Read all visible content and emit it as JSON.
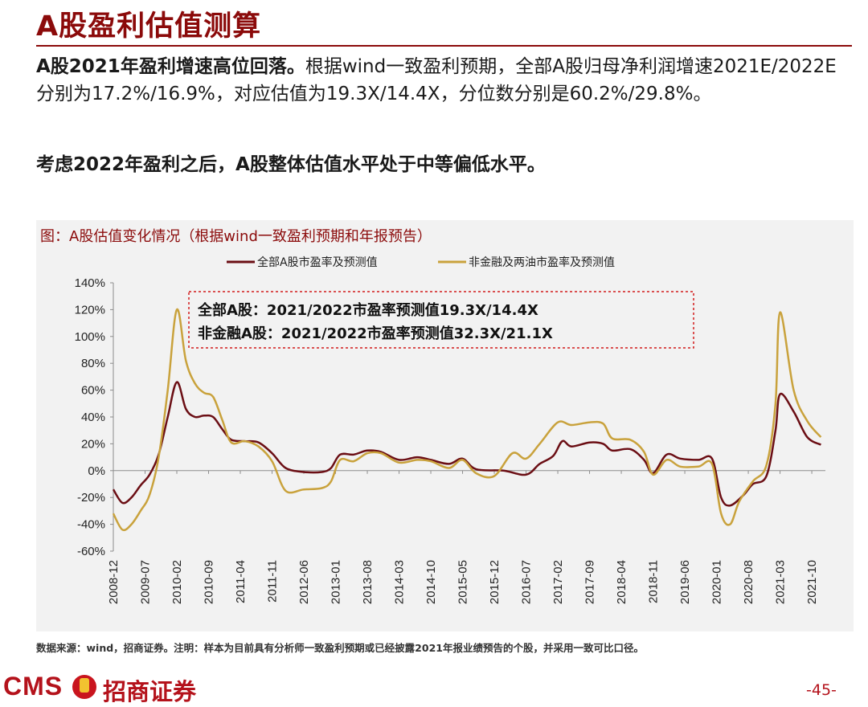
{
  "page": {
    "title": "A股盈利估值测算",
    "para1_bold": "A股2021年盈利增速高位回落。",
    "para1_rest": "根据wind一致盈利预期，全部A股归母净利润增速2021E/2022E分别为17.2%/16.9%，对应估值为19.3X/14.4X，分位数分别是60.2%/29.8%。",
    "para2": "考虑2022年盈利之后，A股整体估值水平处于中等偏低水平。",
    "source_note": "数据来源：wind，招商证券。注明：样本为目前具有分析师一致盈利预期或已经披露2021年报业绩预告的个股，并采用一致可比口径。",
    "footer_cms": "CMS",
    "footer_brand": "招商证券",
    "page_number": "-45-"
  },
  "chart_data": {
    "type": "line",
    "caption": "图：A股估值变化情况（根据wind一致盈利预期和年报预告）",
    "title": "",
    "xlabel": "",
    "ylabel": "",
    "ylim": [
      -60,
      140
    ],
    "y_ticks": [
      "140%",
      "120%",
      "100%",
      "80%",
      "60%",
      "40%",
      "20%",
      "0%",
      "-20%",
      "-40%",
      "-60%"
    ],
    "x_ticks": [
      "2008-12",
      "2009-07",
      "2010-02",
      "2010-09",
      "2011-04",
      "2011-11",
      "2012-06",
      "2013-01",
      "2013-08",
      "2014-03",
      "2014-10",
      "2015-05",
      "2015-12",
      "2016-07",
      "2017-02",
      "2017-09",
      "2018-04",
      "2018-11",
      "2019-06",
      "2020-01",
      "2020-08",
      "2021-03",
      "2021-10"
    ],
    "x_range": [
      "2008-12",
      "2022-01"
    ],
    "legend_position": "top-center",
    "grid": false,
    "annotations": [
      "全部A股：2021/2022市盈率预测值19.3X/14.4X",
      "非金融A股：2021/2022市盈率预测值32.3X/21.1X"
    ],
    "series": [
      {
        "name": "全部A股市盈率及预测值",
        "color": "#6b0e14",
        "points": [
          [
            "2008-12",
            -14
          ],
          [
            "2009-02",
            -24
          ],
          [
            "2009-04",
            -20
          ],
          [
            "2009-06",
            -11
          ],
          [
            "2009-08",
            -3
          ],
          [
            "2009-10",
            12
          ],
          [
            "2009-12",
            40
          ],
          [
            "2010-02",
            66
          ],
          [
            "2010-04",
            46
          ],
          [
            "2010-06",
            40
          ],
          [
            "2010-08",
            41
          ],
          [
            "2010-10",
            40
          ],
          [
            "2010-12",
            31
          ],
          [
            "2011-02",
            23
          ],
          [
            "2011-05",
            22
          ],
          [
            "2011-08",
            21
          ],
          [
            "2011-11",
            13
          ],
          [
            "2012-02",
            2
          ],
          [
            "2012-06",
            -1
          ],
          [
            "2012-10",
            -1
          ],
          [
            "2012-12",
            2
          ],
          [
            "2013-02",
            12
          ],
          [
            "2013-05",
            12
          ],
          [
            "2013-08",
            15
          ],
          [
            "2013-11",
            14
          ],
          [
            "2014-03",
            8
          ],
          [
            "2014-07",
            10
          ],
          [
            "2014-10",
            8
          ],
          [
            "2015-02",
            5
          ],
          [
            "2015-05",
            9
          ],
          [
            "2015-08",
            1
          ],
          [
            "2016-02",
            0
          ],
          [
            "2016-07",
            -3
          ],
          [
            "2016-10",
            5
          ],
          [
            "2017-01",
            11
          ],
          [
            "2017-03",
            22
          ],
          [
            "2017-05",
            18
          ],
          [
            "2017-09",
            21
          ],
          [
            "2017-12",
            20
          ],
          [
            "2018-02",
            15
          ],
          [
            "2018-06",
            16
          ],
          [
            "2018-09",
            8
          ],
          [
            "2018-11",
            -2
          ],
          [
            "2019-02",
            12
          ],
          [
            "2019-05",
            9
          ],
          [
            "2019-09",
            8
          ],
          [
            "2019-12",
            9
          ],
          [
            "2020-02",
            -20
          ],
          [
            "2020-04",
            -26
          ],
          [
            "2020-07",
            -18
          ],
          [
            "2020-09",
            -10
          ],
          [
            "2020-12",
            -4
          ],
          [
            "2021-02",
            30
          ],
          [
            "2021-03",
            57
          ],
          [
            "2021-06",
            44
          ],
          [
            "2021-09",
            25
          ],
          [
            "2021-12",
            19.3
          ]
        ]
      },
      {
        "name": "非金融及两油市盈率及预测值",
        "color": "#c9a23c",
        "points": [
          [
            "2008-12",
            -32
          ],
          [
            "2009-02",
            -44
          ],
          [
            "2009-04",
            -40
          ],
          [
            "2009-06",
            -30
          ],
          [
            "2009-08",
            -18
          ],
          [
            "2009-10",
            10
          ],
          [
            "2009-12",
            60
          ],
          [
            "2010-02",
            120
          ],
          [
            "2010-04",
            82
          ],
          [
            "2010-06",
            65
          ],
          [
            "2010-08",
            58
          ],
          [
            "2010-10",
            55
          ],
          [
            "2010-12",
            38
          ],
          [
            "2011-02",
            21
          ],
          [
            "2011-05",
            22
          ],
          [
            "2011-08",
            18
          ],
          [
            "2011-11",
            7
          ],
          [
            "2012-02",
            -15
          ],
          [
            "2012-06",
            -14
          ],
          [
            "2012-10",
            -13
          ],
          [
            "2012-12",
            -8
          ],
          [
            "2013-02",
            8
          ],
          [
            "2013-05",
            7
          ],
          [
            "2013-08",
            13
          ],
          [
            "2013-11",
            13
          ],
          [
            "2014-03",
            6
          ],
          [
            "2014-07",
            8
          ],
          [
            "2014-10",
            7
          ],
          [
            "2015-02",
            2
          ],
          [
            "2015-05",
            8
          ],
          [
            "2015-08",
            -2
          ],
          [
            "2015-12",
            -4
          ],
          [
            "2016-04",
            13
          ],
          [
            "2016-07",
            9
          ],
          [
            "2016-10",
            20
          ],
          [
            "2017-02",
            36
          ],
          [
            "2017-05",
            34
          ],
          [
            "2017-09",
            36
          ],
          [
            "2017-12",
            35
          ],
          [
            "2018-02",
            24
          ],
          [
            "2018-06",
            23
          ],
          [
            "2018-09",
            14
          ],
          [
            "2018-11",
            -3
          ],
          [
            "2019-02",
            8
          ],
          [
            "2019-05",
            3
          ],
          [
            "2019-09",
            3
          ],
          [
            "2019-12",
            5
          ],
          [
            "2020-02",
            -32
          ],
          [
            "2020-04",
            -40
          ],
          [
            "2020-06",
            -23
          ],
          [
            "2020-09",
            -8
          ],
          [
            "2020-12",
            4
          ],
          [
            "2021-02",
            50
          ],
          [
            "2021-03",
            118
          ],
          [
            "2021-06",
            60
          ],
          [
            "2021-09",
            37
          ],
          [
            "2021-12",
            25
          ]
        ]
      }
    ]
  }
}
